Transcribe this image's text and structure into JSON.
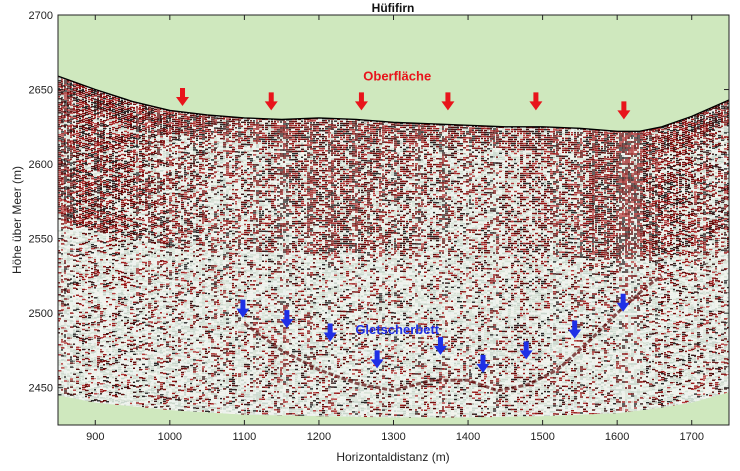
{
  "chart_data": {
    "type": "radargram",
    "title": "Hüfifirn",
    "xlabel": "Horizontaldistanz (m)",
    "ylabel": "Höhe über Meer (m)",
    "xlim": [
      850,
      1750
    ],
    "ylim": [
      2425,
      2700
    ],
    "xticks": [
      900,
      1000,
      1100,
      1200,
      1300,
      1400,
      1500,
      1600,
      1700
    ],
    "yticks": [
      2450,
      2500,
      2550,
      2600,
      2650,
      2700
    ],
    "colors": {
      "background": "#cfe8be",
      "surface_line": "#000000",
      "surface_arrow": "#e8141b",
      "bed_arrow": "#1e2fe6",
      "noise_light": "#e8efe9",
      "noise_dark": "#7a1010"
    },
    "surface": {
      "x": [
        850,
        900,
        950,
        1000,
        1050,
        1100,
        1150,
        1200,
        1250,
        1300,
        1350,
        1400,
        1450,
        1500,
        1550,
        1600,
        1630,
        1660,
        1700,
        1750
      ],
      "y": [
        2659,
        2650,
        2642,
        2636,
        2633,
        2631,
        2630,
        2631,
        2630,
        2628,
        2627,
        2626,
        2625,
        2625,
        2624,
        2622,
        2622,
        2625,
        2632,
        2643
      ]
    },
    "profile_bottom": {
      "x": [
        850,
        900,
        1000,
        1100,
        1200,
        1300,
        1400,
        1500,
        1600,
        1650,
        1700,
        1750
      ],
      "y": [
        2445,
        2440,
        2435,
        2432,
        2431,
        2430,
        2430,
        2431,
        2433,
        2436,
        2440,
        2447
      ]
    },
    "bed": {
      "x": [
        1100,
        1150,
        1200,
        1250,
        1300,
        1350,
        1400,
        1440,
        1480,
        1520,
        1560,
        1600,
        1640,
        1660
      ],
      "y": [
        2493,
        2475,
        2462,
        2453,
        2448,
        2455,
        2455,
        2448,
        2452,
        2462,
        2480,
        2500,
        2518,
        2525
      ]
    },
    "annotations": [
      {
        "text": "Oberfläche",
        "x": 1305,
        "y": 2656,
        "color": "#e8141b"
      },
      {
        "text": "Gletscherbett",
        "x": 1305,
        "y": 2486,
        "color": "#1e2fe6"
      }
    ],
    "surface_arrows": [
      {
        "x": 1017,
        "y": 2639
      },
      {
        "x": 1136,
        "y": 2636
      },
      {
        "x": 1257,
        "y": 2636
      },
      {
        "x": 1373,
        "y": 2636
      },
      {
        "x": 1491,
        "y": 2636
      },
      {
        "x": 1609,
        "y": 2630
      }
    ],
    "bed_arrows": [
      {
        "x": 1098,
        "y": 2497
      },
      {
        "x": 1157,
        "y": 2490
      },
      {
        "x": 1215,
        "y": 2481
      },
      {
        "x": 1278,
        "y": 2463
      },
      {
        "x": 1363,
        "y": 2472
      },
      {
        "x": 1420,
        "y": 2460
      },
      {
        "x": 1478,
        "y": 2469
      },
      {
        "x": 1543,
        "y": 2483
      },
      {
        "x": 1608,
        "y": 2501
      }
    ]
  }
}
